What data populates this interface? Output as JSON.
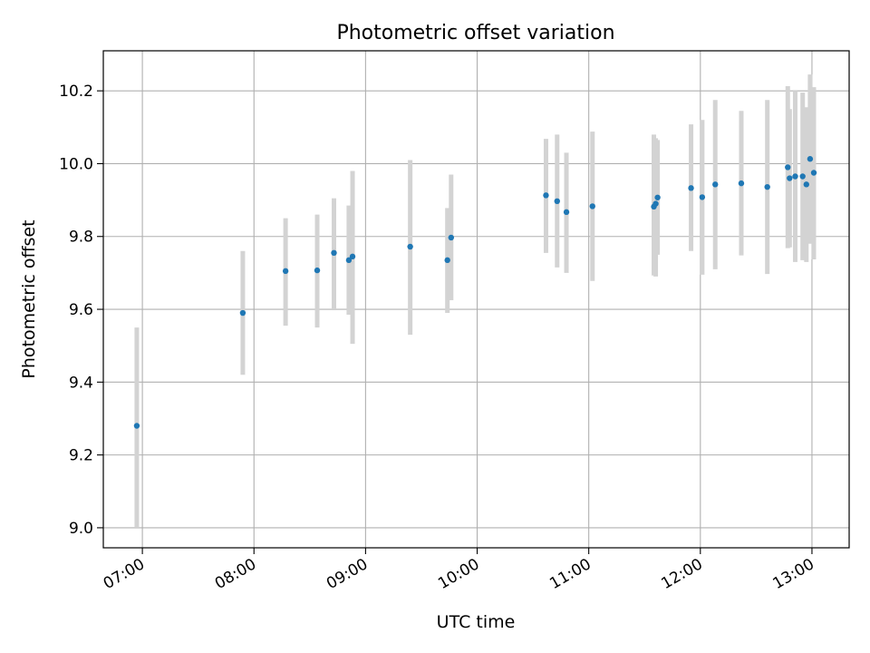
{
  "chart_data": {
    "type": "scatter",
    "title": "Photometric offset variation",
    "xlabel": "UTC time",
    "ylabel": "Photometric offset",
    "x_axis_kind": "time",
    "xlim": [
      "06:39",
      "13:20"
    ],
    "ylim": [
      8.945,
      10.31
    ],
    "xticks": [
      "07:00",
      "08:00",
      "09:00",
      "10:00",
      "11:00",
      "12:00",
      "13:00"
    ],
    "yticks": [
      9.0,
      9.2,
      9.4,
      9.6,
      9.8,
      10.0,
      10.2
    ],
    "ytick_labels": [
      "9.0",
      "9.2",
      "9.4",
      "9.6",
      "9.8",
      "10.0",
      "10.2"
    ],
    "grid": true,
    "legend": "none",
    "marker_color": "#1f77b4",
    "errorbar_color": "#d3d3d3",
    "series": [
      {
        "points": [
          {
            "x": "06:57",
            "y": 9.28,
            "lo": 9.0,
            "hi": 9.55
          },
          {
            "x": "07:54",
            "y": 9.59,
            "lo": 9.42,
            "hi": 9.76
          },
          {
            "x": "08:17",
            "y": 9.705,
            "lo": 9.555,
            "hi": 9.85
          },
          {
            "x": "08:34",
            "y": 9.707,
            "lo": 9.55,
            "hi": 9.86
          },
          {
            "x": "08:43",
            "y": 9.755,
            "lo": 9.6,
            "hi": 9.905
          },
          {
            "x": "08:51",
            "y": 9.735,
            "lo": 9.585,
            "hi": 9.885
          },
          {
            "x": "08:53",
            "y": 9.745,
            "lo": 9.505,
            "hi": 9.98
          },
          {
            "x": "09:24",
            "y": 9.772,
            "lo": 9.53,
            "hi": 10.01
          },
          {
            "x": "09:44",
            "y": 9.735,
            "lo": 9.59,
            "hi": 9.878
          },
          {
            "x": "09:46",
            "y": 9.797,
            "lo": 9.625,
            "hi": 9.97
          },
          {
            "x": "10:37",
            "y": 9.913,
            "lo": 9.755,
            "hi": 10.068
          },
          {
            "x": "10:43",
            "y": 9.897,
            "lo": 9.715,
            "hi": 10.08
          },
          {
            "x": "10:48",
            "y": 9.867,
            "lo": 9.7,
            "hi": 10.03
          },
          {
            "x": "11:02",
            "y": 9.883,
            "lo": 9.678,
            "hi": 10.088
          },
          {
            "x": "11:35",
            "y": 9.882,
            "lo": 9.693,
            "hi": 10.08
          },
          {
            "x": "11:36",
            "y": 9.89,
            "lo": 9.69,
            "hi": 10.07
          },
          {
            "x": "11:37",
            "y": 9.907,
            "lo": 9.75,
            "hi": 10.065
          },
          {
            "x": "11:55",
            "y": 9.933,
            "lo": 9.76,
            "hi": 10.108
          },
          {
            "x": "12:01",
            "y": 9.908,
            "lo": 9.695,
            "hi": 10.12
          },
          {
            "x": "12:08",
            "y": 9.943,
            "lo": 9.71,
            "hi": 10.175
          },
          {
            "x": "12:22",
            "y": 9.946,
            "lo": 9.748,
            "hi": 10.145
          },
          {
            "x": "12:36",
            "y": 9.936,
            "lo": 9.697,
            "hi": 10.175
          },
          {
            "x": "12:47",
            "y": 9.99,
            "lo": 9.768,
            "hi": 10.213
          },
          {
            "x": "12:48",
            "y": 9.96,
            "lo": 9.77,
            "hi": 10.15
          },
          {
            "x": "12:51",
            "y": 9.965,
            "lo": 9.73,
            "hi": 10.2
          },
          {
            "x": "12:55",
            "y": 9.965,
            "lo": 9.735,
            "hi": 10.195
          },
          {
            "x": "12:57",
            "y": 9.943,
            "lo": 9.73,
            "hi": 10.155
          },
          {
            "x": "12:59",
            "y": 10.013,
            "lo": 9.78,
            "hi": 10.245
          },
          {
            "x": "13:01",
            "y": 9.975,
            "lo": 9.737,
            "hi": 10.21
          }
        ]
      }
    ]
  }
}
